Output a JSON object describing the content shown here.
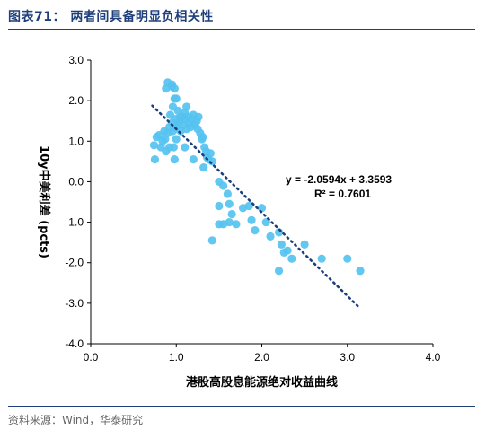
{
  "figure": {
    "title": "图表71：  两者间具备明显负相关性"
  },
  "source": "资料来源：Wind，华泰研究",
  "colors": {
    "points": "#55c2f0",
    "trend": "#1f3f7a",
    "header_rule": "#1f3f7a",
    "axis": "#000000"
  },
  "chart_data": {
    "type": "scatter",
    "xlabel": "港股高股息能源绝对收益曲线",
    "ylabel": "10y中美利差  (pcts)",
    "xlim": [
      0.0,
      4.0
    ],
    "ylim": [
      -4.0,
      3.0
    ],
    "x_ticks": [
      "0.0",
      "1.0",
      "2.0",
      "3.0",
      "4.0"
    ],
    "y_ticks": [
      "3.0",
      "2.0",
      "1.0",
      "0.0",
      "-1.0",
      "-2.0",
      "-3.0",
      "-4.0"
    ],
    "grid": false,
    "trendline": {
      "slope": -2.0594,
      "intercept": 3.3593,
      "x_range": [
        0.72,
        3.15
      ]
    },
    "annotations": {
      "equation": "y = -2.0594x + 3.3593",
      "r_squared": "R² = 0.7601"
    },
    "points": [
      [
        0.75,
        0.55
      ],
      [
        0.74,
        0.9
      ],
      [
        0.77,
        1.1
      ],
      [
        0.8,
        1.15
      ],
      [
        0.82,
        0.85
      ],
      [
        0.84,
        1.0
      ],
      [
        0.86,
        1.25
      ],
      [
        0.87,
        1.05
      ],
      [
        0.88,
        0.75
      ],
      [
        0.9,
        1.2
      ],
      [
        0.92,
        0.85
      ],
      [
        0.92,
        1.35
      ],
      [
        0.95,
        1.45
      ],
      [
        0.96,
        1.25
      ],
      [
        0.97,
        0.85
      ],
      [
        0.99,
        1.35
      ],
      [
        1.0,
        1.55
      ],
      [
        1.02,
        1.4
      ],
      [
        1.04,
        1.5
      ],
      [
        1.05,
        1.25
      ],
      [
        1.07,
        1.6
      ],
      [
        1.09,
        1.4
      ],
      [
        1.1,
        1.55
      ],
      [
        1.12,
        1.3
      ],
      [
        1.14,
        1.6
      ],
      [
        1.15,
        1.45
      ],
      [
        1.17,
        1.35
      ],
      [
        1.18,
        1.55
      ],
      [
        1.2,
        1.65
      ],
      [
        1.22,
        1.4
      ],
      [
        1.24,
        1.5
      ],
      [
        1.25,
        1.3
      ],
      [
        1.26,
        1.6
      ],
      [
        1.28,
        1.2
      ],
      [
        1.3,
        1.05
      ],
      [
        1.31,
        1.1
      ],
      [
        1.33,
        0.85
      ],
      [
        1.35,
        0.75
      ],
      [
        1.36,
        0.6
      ],
      [
        1.38,
        0.55
      ],
      [
        1.4,
        0.7
      ],
      [
        1.42,
        0.5
      ],
      [
        1.32,
        0.35
      ],
      [
        1.2,
        0.55
      ],
      [
        1.1,
        0.85
      ],
      [
        1.0,
        1.05
      ],
      [
        0.93,
        1.65
      ],
      [
        0.96,
        1.85
      ],
      [
        0.98,
        2.05
      ],
      [
        0.95,
        2.35
      ],
      [
        0.88,
        2.3
      ],
      [
        0.9,
        2.45
      ],
      [
        0.95,
        2.4
      ],
      [
        0.98,
        2.3
      ],
      [
        1.0,
        2.05
      ],
      [
        1.02,
        1.75
      ],
      [
        1.05,
        1.6
      ],
      [
        1.1,
        1.7
      ],
      [
        1.12,
        1.85
      ],
      [
        0.98,
        0.55
      ],
      [
        1.5,
        0.0
      ],
      [
        1.55,
        -0.1
      ],
      [
        1.6,
        -0.3
      ],
      [
        1.62,
        -0.55
      ],
      [
        1.5,
        -0.6
      ],
      [
        1.55,
        -1.05
      ],
      [
        1.62,
        -1.0
      ],
      [
        1.65,
        -0.8
      ],
      [
        1.42,
        -1.45
      ],
      [
        1.7,
        -1.05
      ],
      [
        1.78,
        -0.65
      ],
      [
        1.85,
        -0.6
      ],
      [
        1.88,
        -0.95
      ],
      [
        1.92,
        -1.2
      ],
      [
        2.0,
        -0.65
      ],
      [
        2.05,
        -1.0
      ],
      [
        2.1,
        -1.35
      ],
      [
        2.2,
        -1.25
      ],
      [
        2.23,
        -1.55
      ],
      [
        2.26,
        -1.75
      ],
      [
        2.3,
        -1.7
      ],
      [
        2.35,
        -1.9
      ],
      [
        2.2,
        -2.2
      ],
      [
        2.5,
        -1.55
      ],
      [
        2.7,
        -1.9
      ],
      [
        3.0,
        -1.9
      ],
      [
        3.15,
        -2.2
      ],
      [
        1.5,
        -1.05
      ]
    ]
  }
}
